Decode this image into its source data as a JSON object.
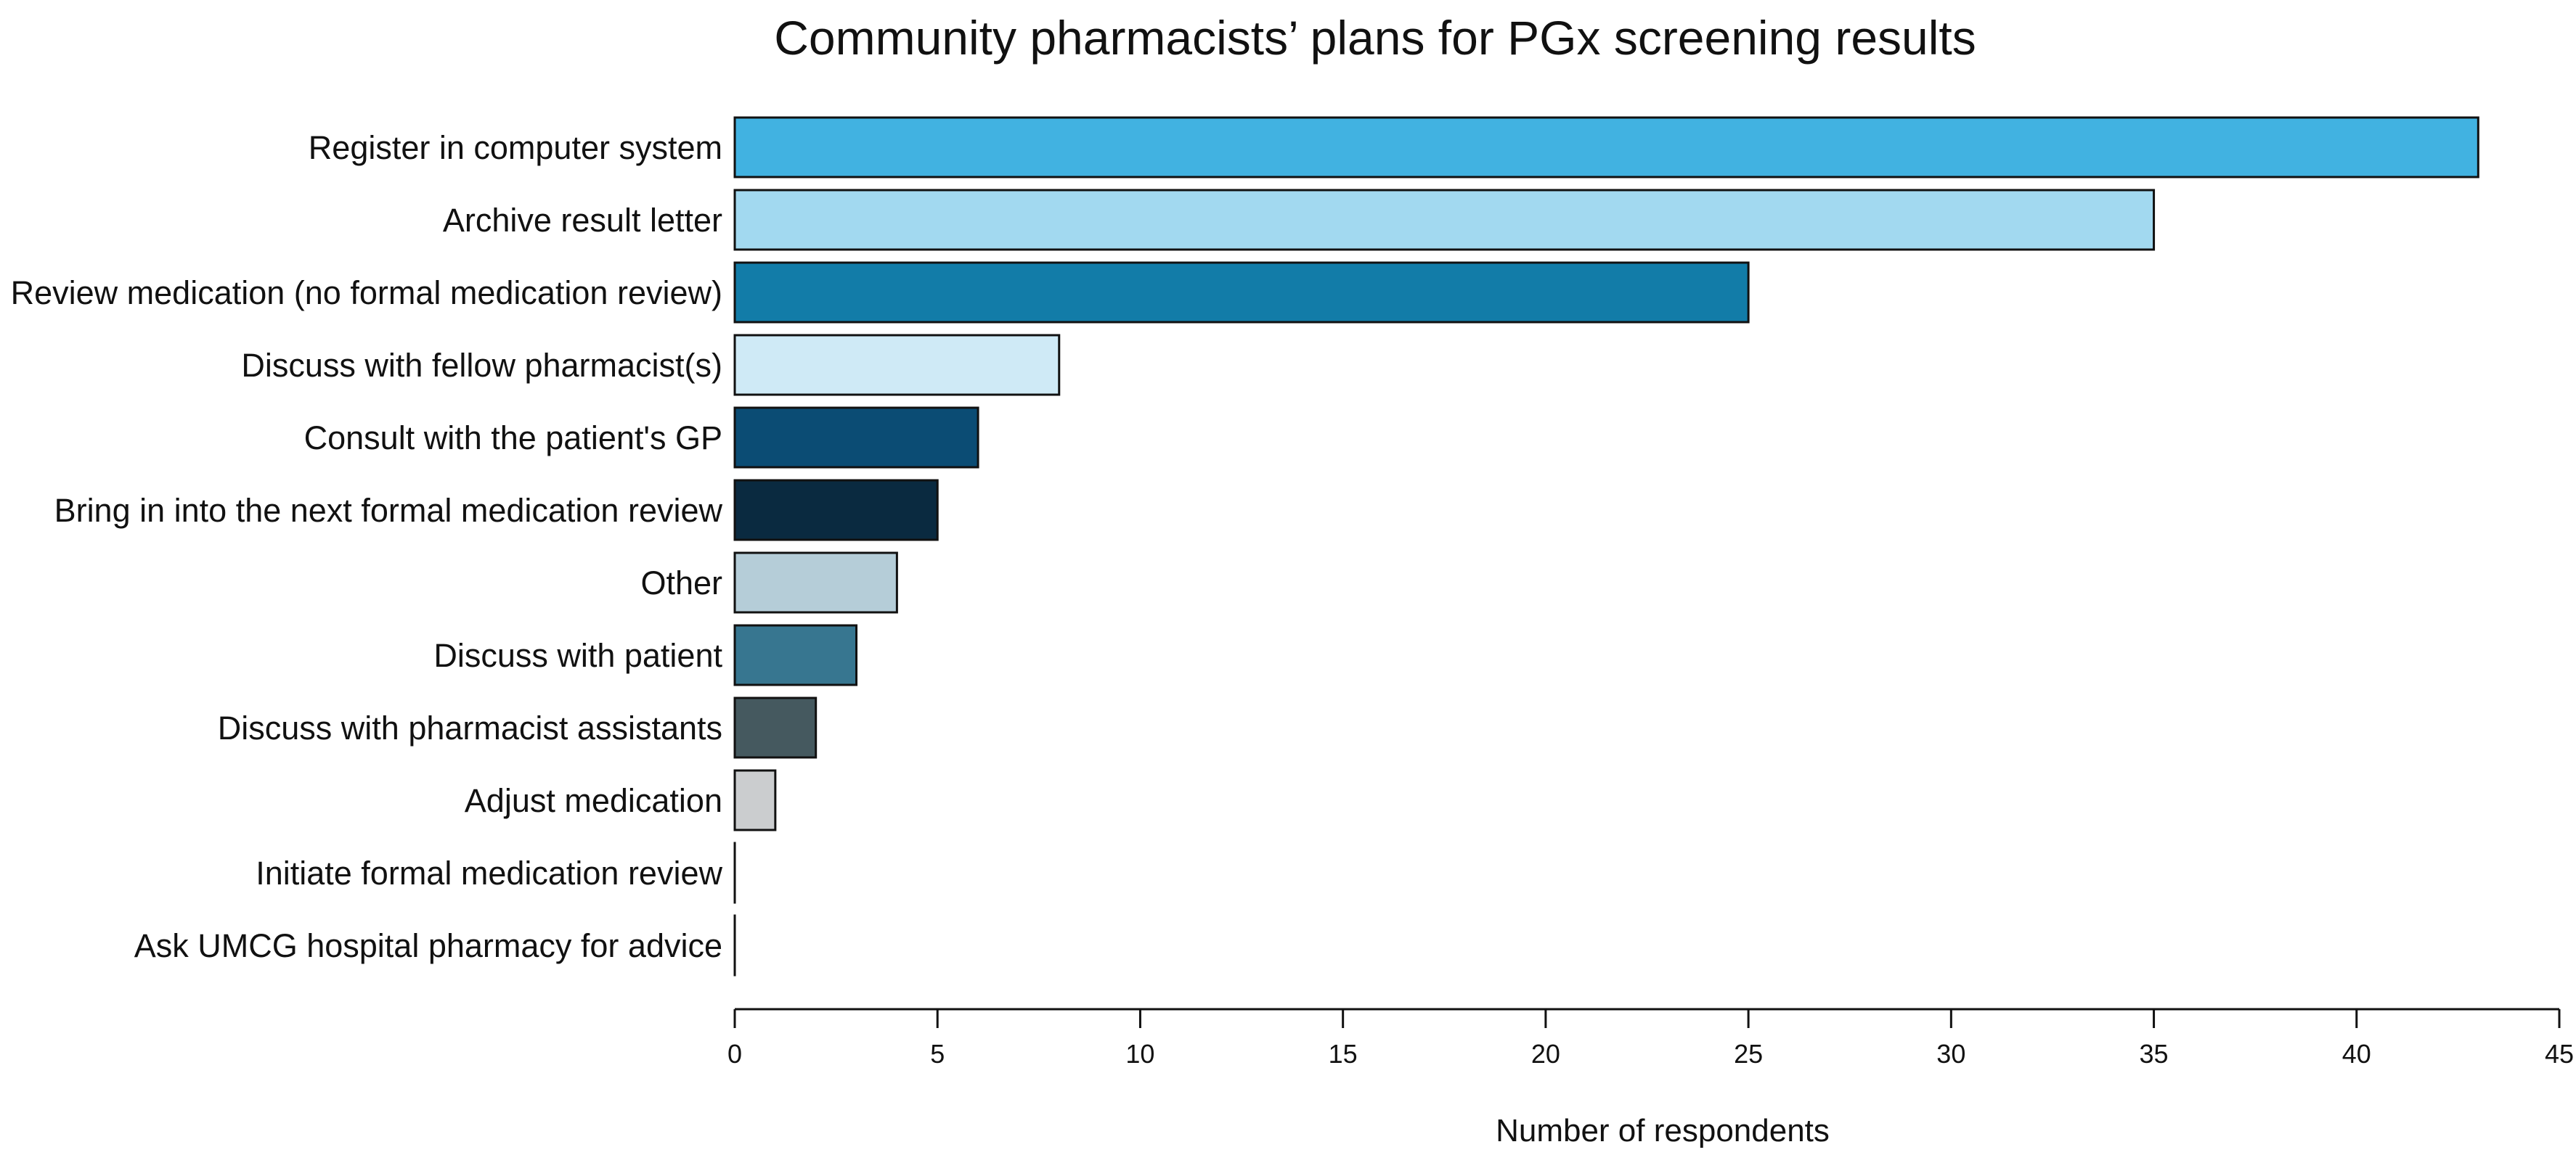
{
  "chart_data": {
    "type": "bar",
    "orientation": "horizontal",
    "title": "Community pharmacists’ plans for PGx screening results",
    "xlabel": "Number of respondents",
    "ylabel": "",
    "xlim": [
      0,
      45
    ],
    "xticks": [
      0,
      5,
      10,
      15,
      20,
      25,
      30,
      35,
      40,
      45
    ],
    "grid": false,
    "legend": "none",
    "categories": [
      "Register in computer system",
      "Archive result letter",
      "Review medication (no formal medication review)",
      "Discuss with fellow pharmacist(s)",
      "Consult with the patient's GP",
      "Bring in into the next formal medication review",
      "Other",
      "Discuss with patient",
      "Discuss with pharmacist assistants",
      "Adjust medication",
      "Initiate formal medication review",
      "Ask UMCG hospital pharmacy for advice"
    ],
    "values": [
      43,
      35,
      25,
      8,
      6,
      5,
      4,
      3,
      2,
      1,
      0,
      0
    ],
    "colors": [
      "#41b2e1",
      "#a2d9f0",
      "#127ca8",
      "#cfeaf6",
      "#0b4c74",
      "#0a2a40",
      "#b5cdd8",
      "#377690",
      "#45595f",
      "#cbcdcf",
      "#ffffff",
      "#ffffff"
    ]
  }
}
